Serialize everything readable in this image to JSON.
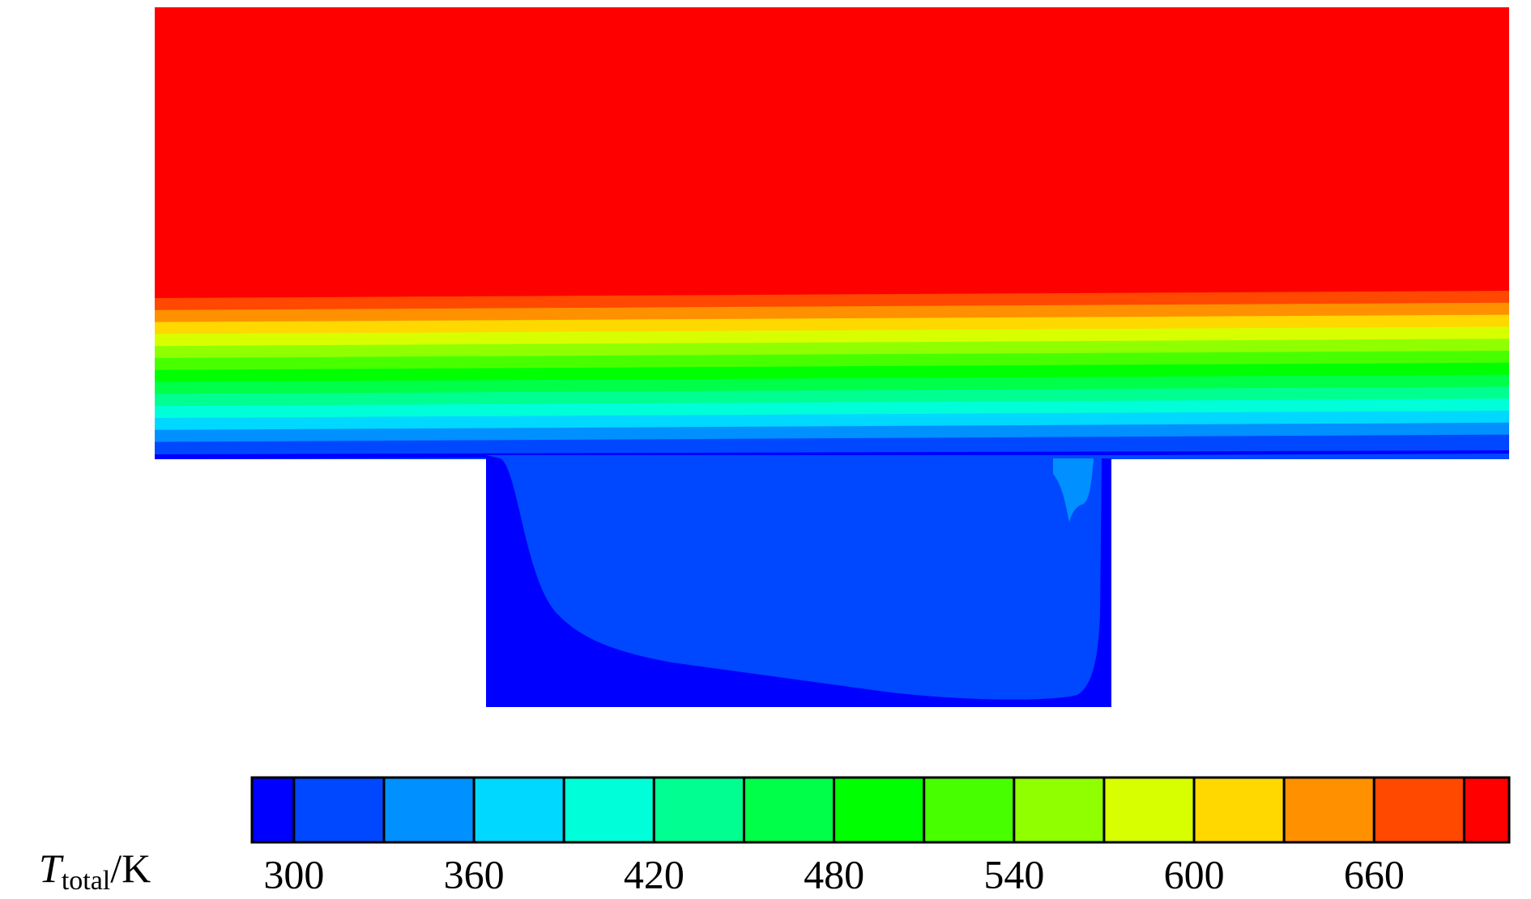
{
  "chart_data": {
    "type": "contour",
    "colorbar": {
      "label": {
        "symbol": "T",
        "subscript": "total",
        "unit": "/K"
      },
      "clim": [
        286,
        705
      ],
      "levels": [
        300,
        330,
        360,
        390,
        420,
        450,
        480,
        510,
        540,
        570,
        600,
        630,
        660,
        690
      ],
      "colors": [
        "#0000ff",
        "#0048ff",
        "#0090ff",
        "#00d8ff",
        "#00ffd8",
        "#00ff90",
        "#00ff48",
        "#00ff00",
        "#48ff00",
        "#90ff00",
        "#d8ff00",
        "#ffd800",
        "#ff9000",
        "#ff4800",
        "#ff0000"
      ],
      "ticks": [
        300,
        360,
        420,
        480,
        540,
        600,
        660
      ]
    }
  }
}
